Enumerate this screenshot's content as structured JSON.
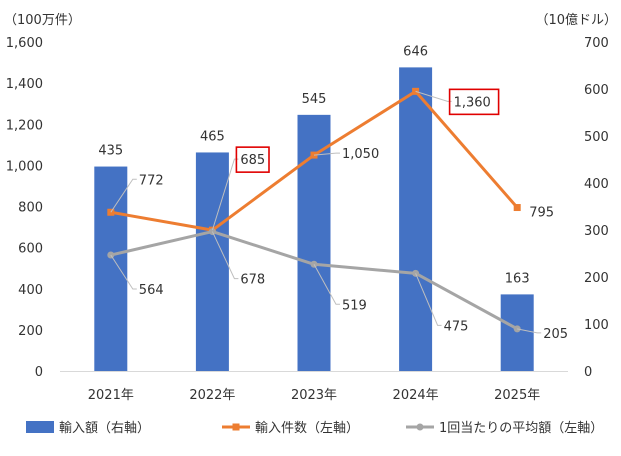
{
  "chart_data": {
    "type": "bar",
    "categories": [
      "2021年",
      "2022年",
      "2023年",
      "2024年",
      "2025年"
    ],
    "y_left": {
      "unit_label": "（100万件）",
      "ticks": [
        "0",
        "200",
        "400",
        "600",
        "800",
        "1,000",
        "1,200",
        "1,400",
        "1,600"
      ],
      "ylim": [
        0,
        1600
      ]
    },
    "y_right": {
      "unit_label": "（10億ドル）",
      "ticks": [
        "0",
        "100",
        "200",
        "300",
        "400",
        "500",
        "600",
        "700"
      ],
      "ylim": [
        0,
        700
      ]
    },
    "grid": false,
    "legend_position": "bottom",
    "series": [
      {
        "name": "輸入額（右軸）",
        "type": "bar",
        "axis": "right",
        "color": "#4472C4",
        "values": [
          435,
          465,
          545,
          646,
          163
        ],
        "labels": [
          "435",
          "465",
          "545",
          "646",
          "163"
        ]
      },
      {
        "name": "輸入件数（左軸）",
        "type": "line",
        "axis": "left",
        "color": "#ED7D31",
        "values": [
          772,
          685,
          1050,
          1360,
          795
        ],
        "labels": [
          "772",
          "685",
          "1,050",
          "1,360",
          "795"
        ],
        "highlighted": [
          false,
          true,
          false,
          true,
          false
        ]
      },
      {
        "name": "1回当たりの平均額（左軸）",
        "type": "line",
        "axis": "left",
        "color": "#A5A5A5",
        "values": [
          564,
          678,
          519,
          475,
          205
        ],
        "labels": [
          "564",
          "678",
          "519",
          "475",
          "205"
        ]
      }
    ]
  }
}
